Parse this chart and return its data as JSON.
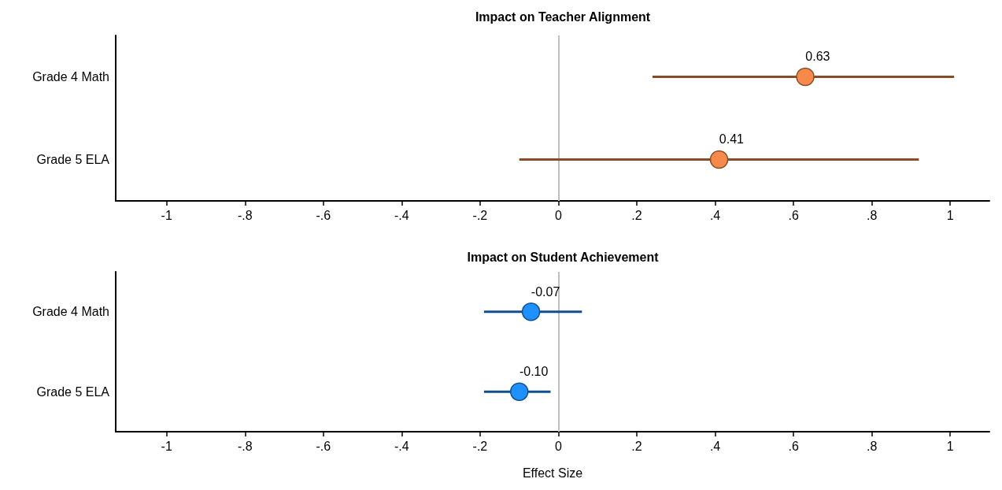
{
  "chart_data": [
    {
      "type": "scatter",
      "title": "Impact on Teacher Alignment",
      "orientation": "horizontal",
      "categories": [
        "Grade 4 Math",
        "Grade 5 ELA"
      ],
      "series": [
        {
          "color": "#f58a4b",
          "values": [
            0.63,
            0.41
          ],
          "errors": [
            [
              0.24,
              1.01
            ],
            [
              -0.1,
              0.92
            ]
          ],
          "value_labels": [
            "0.63",
            "0.41"
          ]
        }
      ],
      "xlim": [
        -1.13,
        1.1
      ],
      "xticks": [
        -1,
        {
          "value": -0.8,
          "label": "-.8"
        },
        {
          "value": -0.6,
          "label": "-.6"
        },
        {
          "value": -0.4,
          "label": "-.4"
        },
        {
          "value": -0.2,
          "label": "-.2"
        },
        0,
        {
          "value": 0.2,
          "label": ".2"
        },
        {
          "value": 0.4,
          "label": ".4"
        },
        {
          "value": 0.6,
          "label": ".6"
        },
        {
          "value": 0.8,
          "label": ".8"
        },
        1
      ],
      "ref_lines": [
        {
          "axis": "x",
          "value": 0,
          "color": "#c0c0c0"
        }
      ],
      "marker": "circle",
      "grid": false
    },
    {
      "type": "scatter",
      "title": "Impact on Student Achievement",
      "xlabel": "Effect Size",
      "orientation": "horizontal",
      "categories": [
        "Grade 4 Math",
        "Grade 5 ELA"
      ],
      "series": [
        {
          "color": "#1e90ff",
          "values": [
            -0.07,
            -0.1
          ],
          "errors": [
            [
              -0.19,
              0.06
            ],
            [
              -0.19,
              -0.02
            ]
          ],
          "value_labels": [
            "-0.07",
            "-0.10"
          ]
        }
      ],
      "xlim": [
        -1.13,
        1.1
      ],
      "xticks": [
        -1,
        {
          "value": -0.8,
          "label": "-.8"
        },
        {
          "value": -0.6,
          "label": "-.6"
        },
        {
          "value": -0.4,
          "label": "-.4"
        },
        {
          "value": -0.2,
          "label": "-.2"
        },
        0,
        {
          "value": 0.2,
          "label": ".2"
        },
        {
          "value": 0.4,
          "label": ".4"
        },
        {
          "value": 0.6,
          "label": ".6"
        },
        {
          "value": 0.8,
          "label": ".8"
        },
        1
      ],
      "ref_lines": [
        {
          "axis": "x",
          "value": 0,
          "color": "#c0c0c0"
        }
      ],
      "marker": "circle",
      "grid": false
    }
  ]
}
